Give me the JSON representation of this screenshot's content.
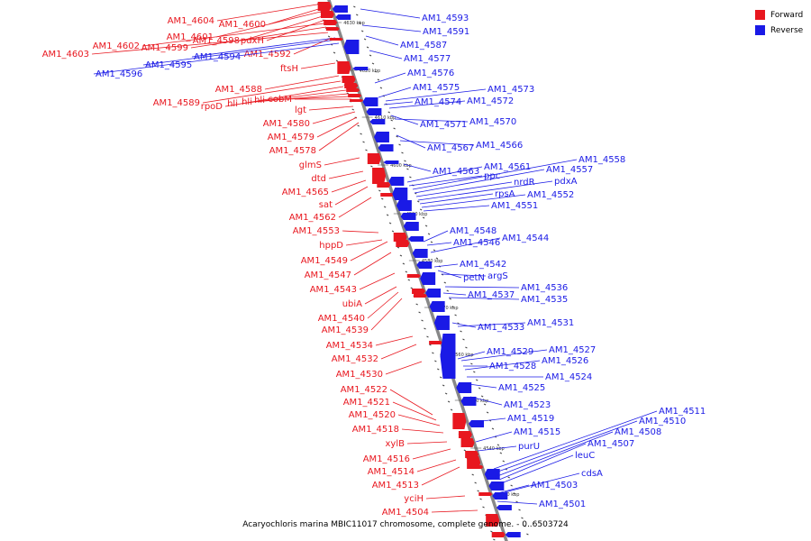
{
  "caption": "Acaryochloris marina MBIC11017 chromosome, complete genome. - 0..6503724",
  "legend": [
    {
      "label": "Forward",
      "color": "#e8171f"
    },
    {
      "label": "Reverse",
      "color": "#1a1ae6"
    }
  ],
  "ticks": [
    "4630 kbp",
    "4620 kbp",
    "4610 kbp",
    "4600 kbp",
    "4590 kbp",
    "4580 kbp",
    "4570 kbp",
    "4560 kbp",
    "4550 kbp",
    "4540 kbp",
    "4530 kbp"
  ],
  "forward_labels": [
    "AM1_4604",
    "AM1_4600",
    "AM1_4601",
    "AM1_4598",
    "pdxH",
    "AM1_4602",
    "AM1_4599",
    "AM1_4603",
    "AM1_4592",
    "ftsH",
    "AM1_4588",
    "AM1_4589",
    "rpoD",
    "hli",
    "hli",
    "hli",
    "cobM",
    "lgt",
    "AM1_4580",
    "AM1_4579",
    "AM1_4578",
    "glmS",
    "dtd",
    "AM1_4565",
    "sat",
    "AM1_4562",
    "AM1_4553",
    "hppD",
    "AM1_4549",
    "AM1_4547",
    "AM1_4543",
    "ubiA",
    "AM1_4540",
    "AM1_4539",
    "AM1_4534",
    "AM1_4532",
    "AM1_4530",
    "AM1_4522",
    "AM1_4521",
    "AM1_4520",
    "AM1_4518",
    "xylB",
    "AM1_4516",
    "AM1_4514",
    "AM1_4513",
    "yciH",
    "AM1_4504"
  ],
  "reverse_labels": [
    "AM1_4594",
    "AM1_4595",
    "AM1_4596",
    "AM1_4593",
    "AM1_4591",
    "AM1_4587",
    "AM1_4577",
    "AM1_4576",
    "AM1_4575",
    "AM1_4573",
    "AM1_4574",
    "AM1_4572",
    "AM1_4571",
    "AM1_4570",
    "AM1_4567",
    "AM1_4566",
    "AM1_4563",
    "AM1_4561",
    "ppc",
    "AM1_4558",
    "AM1_4557",
    "nrdR",
    "pdxA",
    "rpsA",
    "AM1_4552",
    "AM1_4551",
    "AM1_4548",
    "AM1_4546",
    "AM1_4544",
    "AM1_4542",
    "petN",
    "argS",
    "AM1_4536",
    "AM1_4537",
    "AM1_4535",
    "AM1_4533",
    "AM1_4531",
    "AM1_4529",
    "AM1_4527",
    "AM1_4528",
    "AM1_4526",
    "AM1_4524",
    "AM1_4525",
    "AM1_4523",
    "AM1_4519",
    "AM1_4515",
    "purU",
    "AM1_4511",
    "AM1_4510",
    "AM1_4508",
    "AM1_4507",
    "leuC",
    "cdsA",
    "AM1_4503",
    "AM1_4501"
  ]
}
